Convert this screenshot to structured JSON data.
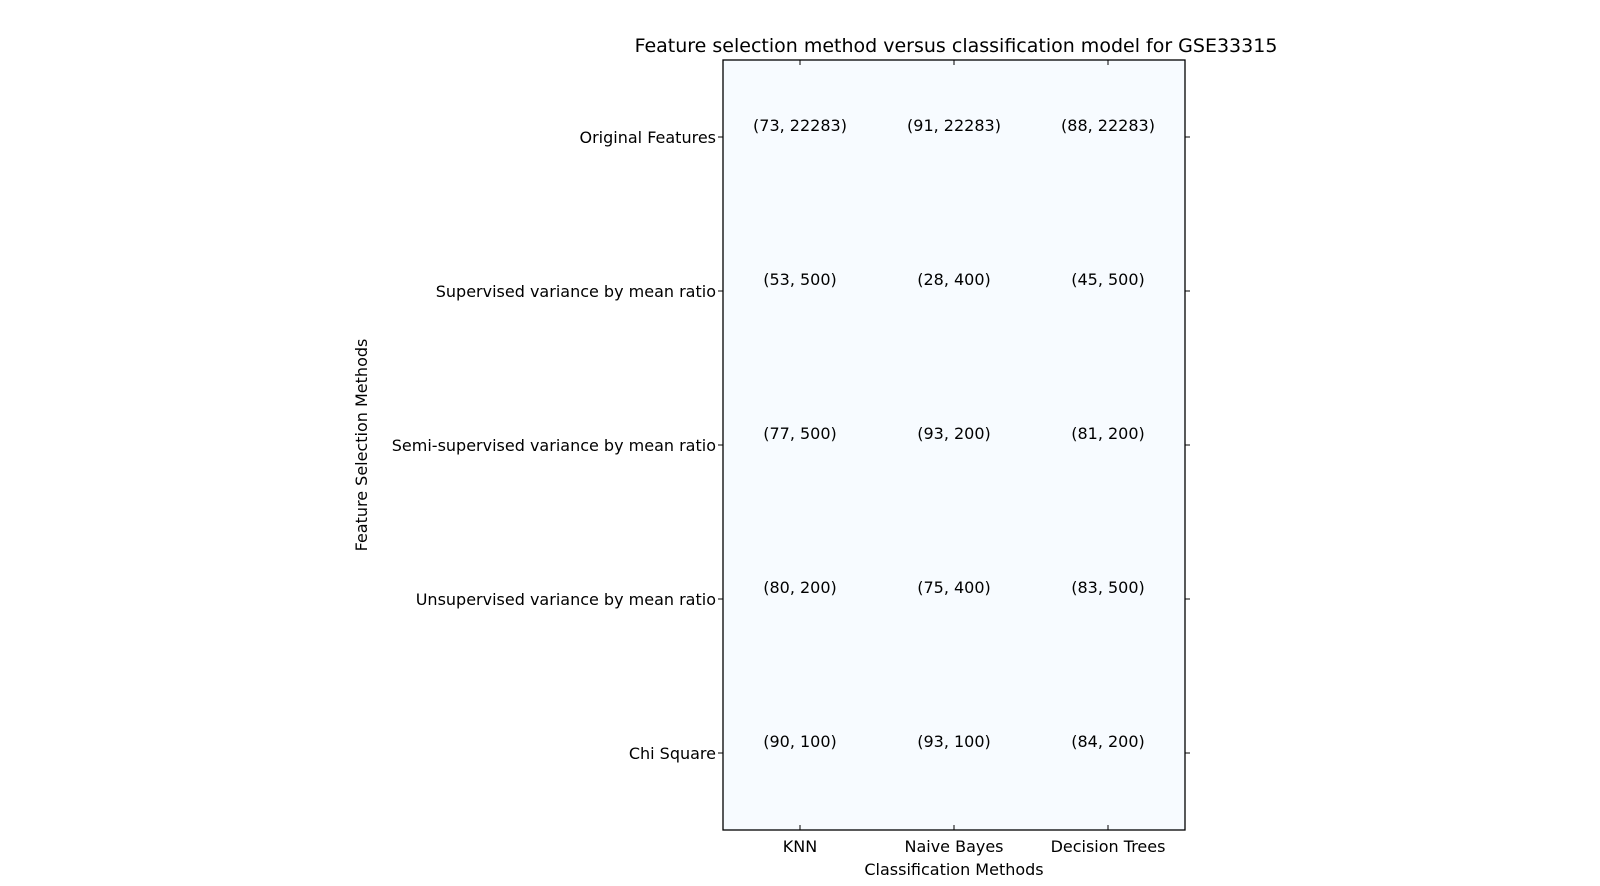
{
  "chart_data": {
    "type": "heatmap",
    "title": "Feature selection method versus classification model for GSE33315",
    "xlabel": "Classification Methods",
    "ylabel": "Feature Selection Methods",
    "x_categories": [
      "KNN",
      "Naive Bayes",
      "Decision Trees"
    ],
    "y_categories": [
      "Original Features",
      "Supervised variance by mean ratio",
      "Semi-supervised variance by mean ratio",
      "Unsupervised variance by mean ratio",
      "Chi Square"
    ],
    "cell_labels": [
      [
        "(73, 22283)",
        "(91, 22283)",
        "(88, 22283)"
      ],
      [
        "(53, 500)",
        "(28, 400)",
        "(45, 500)"
      ],
      [
        "(77, 500)",
        "(93, 200)",
        "(81, 200)"
      ],
      [
        "(80, 200)",
        "(75, 400)",
        "(83, 500)"
      ],
      [
        "(90, 100)",
        "(93, 100)",
        "(84, 200)"
      ]
    ],
    "cell_color": "#f7fbff",
    "frame_color": "#000000"
  }
}
